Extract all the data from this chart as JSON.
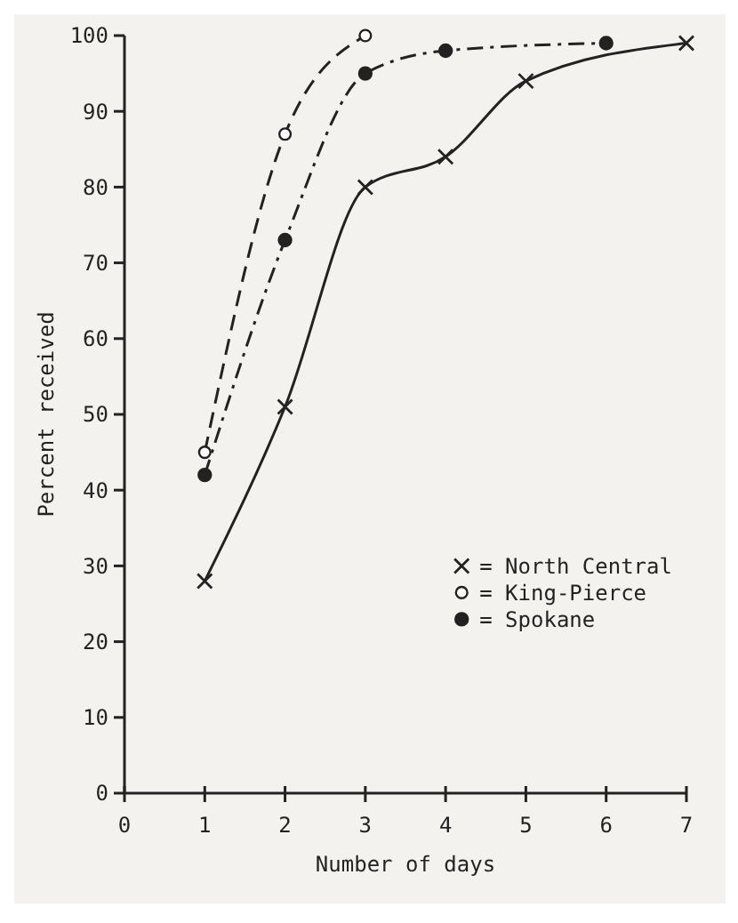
{
  "chart_data": {
    "type": "line",
    "xlabel": "Number of days",
    "ylabel": "Percent received",
    "xlim": [
      0,
      7
    ],
    "xticks": [
      0,
      1,
      2,
      3,
      4,
      5,
      6,
      7
    ],
    "ylim": [
      0,
      100
    ],
    "yticks": [
      0,
      10,
      20,
      30,
      40,
      50,
      60,
      70,
      80,
      90,
      100
    ],
    "grid": false,
    "legend": "bottom right",
    "series": [
      {
        "name": "= North Central",
        "color": "#222222",
        "marker": "cross",
        "line_style": "solid",
        "x": [
          1,
          2,
          3,
          4,
          5,
          7
        ],
        "values": [
          28,
          51,
          80,
          84,
          94,
          99
        ]
      },
      {
        "name": "= King-Pierce",
        "color": "#222222",
        "marker": "circle-open",
        "line_style": "dashed",
        "x": [
          1,
          2,
          3
        ],
        "values": [
          45,
          87,
          100
        ]
      },
      {
        "name": "= Spokane",
        "color": "#222222",
        "marker": "circle",
        "line_style": "dashdot",
        "x": [
          1,
          2,
          3,
          4,
          6
        ],
        "values": [
          42,
          73,
          95,
          98,
          99
        ]
      }
    ]
  }
}
